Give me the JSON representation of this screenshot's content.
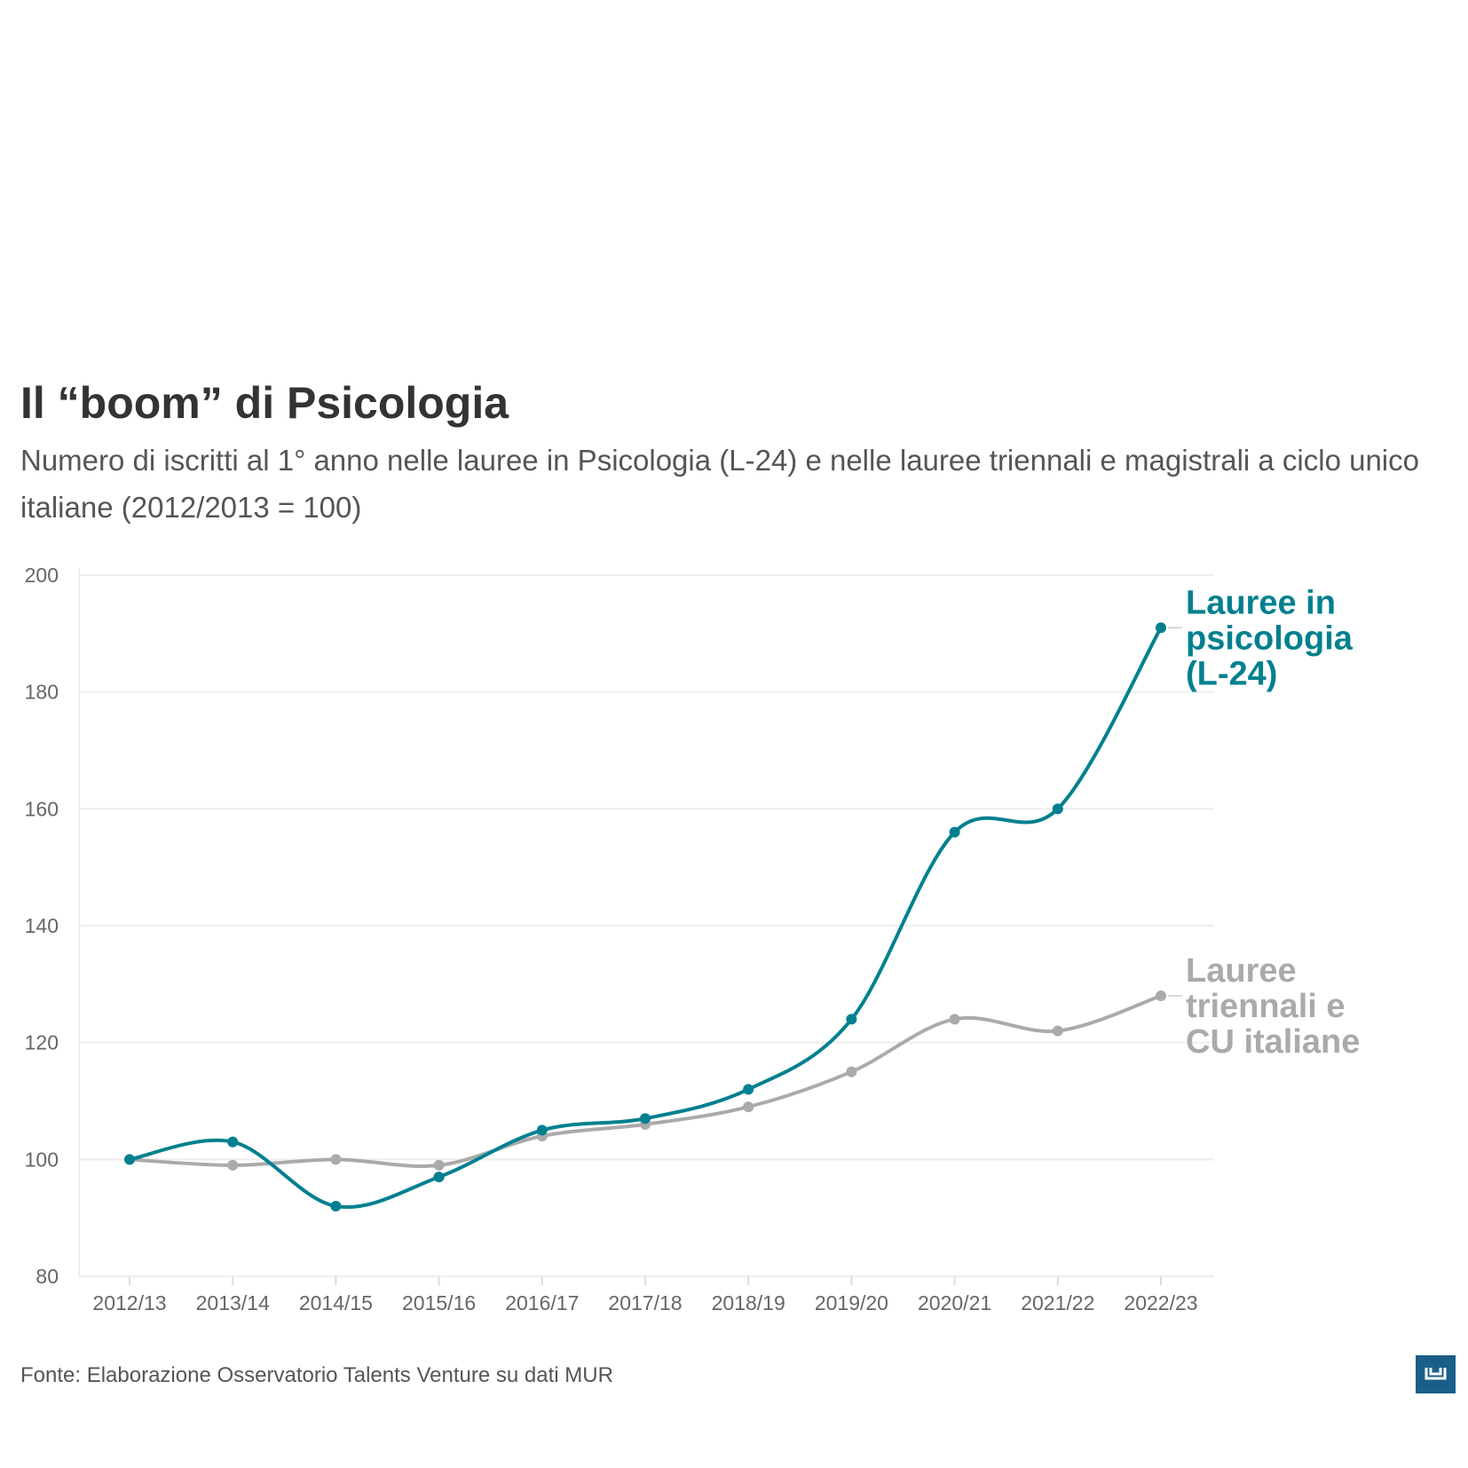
{
  "title": "Il “boom” di Psicologia",
  "subtitle": "Numero di iscritti al 1° anno nelle lauree in Psicologia (L-24) e nelle lauree triennali e magistrali a ciclo unico italiane (2012/2013 = 100)",
  "source": "Fonte: Elaborazione Osservatorio Talents Venture su dati MUR",
  "chart_data": {
    "type": "line",
    "x": [
      "2012/13",
      "2013/14",
      "2014/15",
      "2015/16",
      "2016/17",
      "2017/18",
      "2018/19",
      "2019/20",
      "2020/21",
      "2021/22",
      "2022/23"
    ],
    "yticks": [
      80,
      100,
      120,
      140,
      160,
      180,
      200
    ],
    "ylim": [
      80,
      200
    ],
    "grid": true,
    "series": [
      {
        "name": "Lauree in psicologia (L-24)",
        "label_lines": [
          "Lauree in",
          "psicologia",
          "(L-24)"
        ],
        "color": "#00808f",
        "values": [
          100,
          103,
          92,
          97,
          105,
          107,
          112,
          124,
          156,
          160,
          191
        ]
      },
      {
        "name": "Lauree triennali e CU italiane",
        "label_lines": [
          "Lauree",
          "triennali e",
          "CU italiane"
        ],
        "color": "#aaaaaa",
        "values": [
          100,
          99,
          100,
          99,
          104,
          106,
          109,
          115,
          124,
          122,
          128
        ]
      }
    ]
  }
}
